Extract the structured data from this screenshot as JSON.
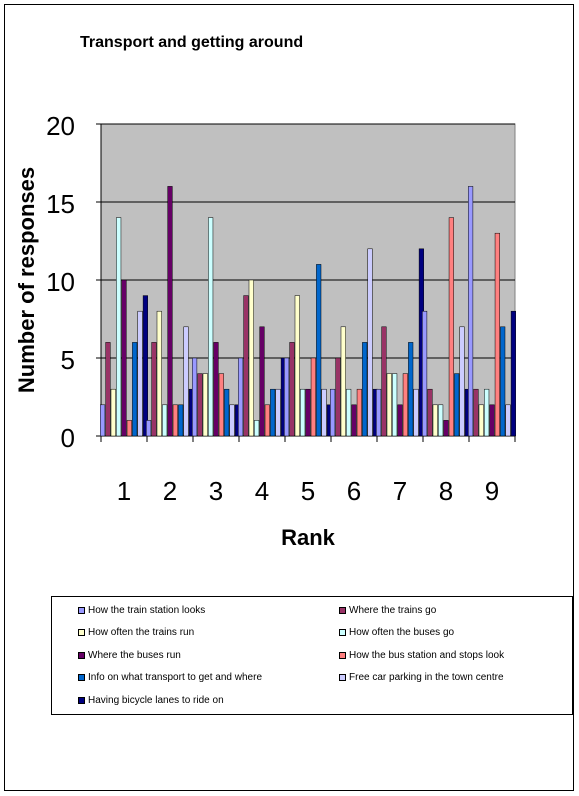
{
  "chart_data": {
    "type": "bar",
    "title": "Transport and getting around",
    "xlabel": "Rank",
    "ylabel": "Number of responses",
    "ylim": [
      0,
      20
    ],
    "yticks": [
      0,
      5,
      10,
      15,
      20
    ],
    "grid": true,
    "legend_position": "bottom",
    "categories": [
      "1",
      "2",
      "3",
      "4",
      "5",
      "6",
      "7",
      "8",
      "9"
    ],
    "series": [
      {
        "name": "How the train station looks",
        "color": "#9999FF",
        "values": [
          2,
          1,
          5,
          5,
          5,
          3,
          3,
          8,
          16
        ]
      },
      {
        "name": "Where the trains go",
        "color": "#993366",
        "values": [
          6,
          6,
          4,
          9,
          6,
          5,
          7,
          3,
          3
        ]
      },
      {
        "name": "How often the trains run",
        "color": "#FFFFCC",
        "values": [
          3,
          8,
          4,
          10,
          9,
          7,
          4,
          2,
          2
        ]
      },
      {
        "name": "How often the buses go",
        "color": "#CCFFFF",
        "values": [
          14,
          2,
          14,
          1,
          3,
          3,
          4,
          2,
          3
        ]
      },
      {
        "name": "Where the buses run",
        "color": "#660066",
        "values": [
          10,
          16,
          6,
          7,
          3,
          2,
          2,
          1,
          2
        ]
      },
      {
        "name": "How the bus station and stops look",
        "color": "#FF8080",
        "values": [
          1,
          2,
          4,
          2,
          5,
          3,
          4,
          14,
          13
        ]
      },
      {
        "name": "Info on what transport to get and where",
        "color": "#0066CC",
        "values": [
          6,
          2,
          3,
          3,
          11,
          6,
          6,
          4,
          7
        ]
      },
      {
        "name": "Free car parking in the town centre",
        "color": "#CCCCFF",
        "values": [
          8,
          7,
          2,
          3,
          3,
          12,
          3,
          7,
          2
        ]
      },
      {
        "name": "Having bicycle lanes to ride on",
        "color": "#000080",
        "values": [
          9,
          3,
          2,
          5,
          2,
          3,
          12,
          3,
          8
        ]
      }
    ]
  }
}
